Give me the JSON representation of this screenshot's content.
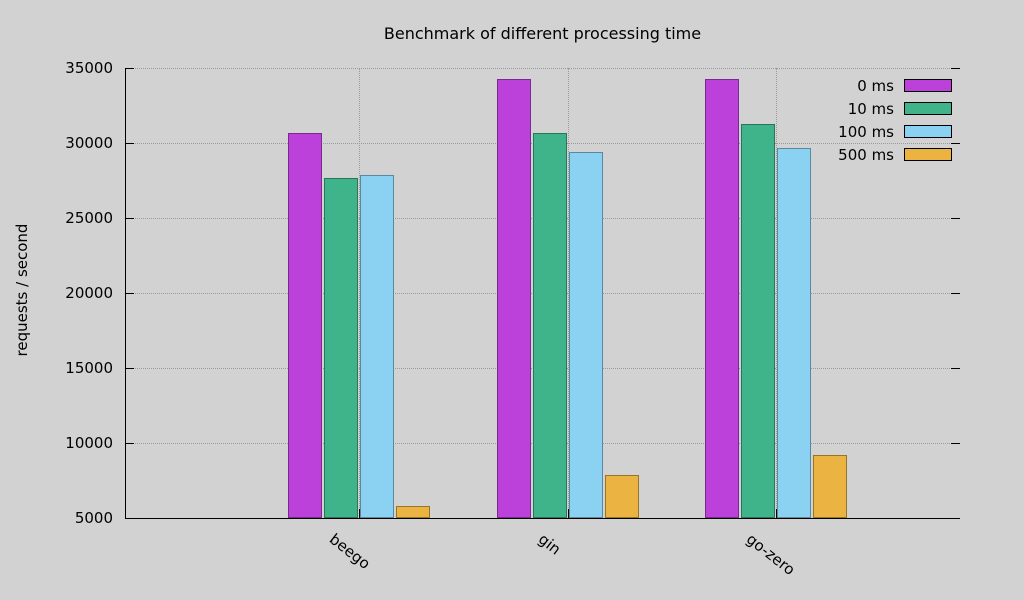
{
  "chart_data": {
    "type": "bar",
    "title": "Benchmark of different processing time",
    "ylabel": "requests / second",
    "xlabel": "",
    "categories": [
      "beego",
      "gin",
      "go-zero"
    ],
    "series": [
      {
        "name": "0 ms",
        "color": "#bb41da",
        "values": [
          30700,
          34300,
          34250
        ]
      },
      {
        "name": "10 ms",
        "color": "#3fb38a",
        "values": [
          27700,
          30650,
          31250
        ]
      },
      {
        "name": "100 ms",
        "color": "#8bd2f2",
        "values": [
          27850,
          29400,
          29650
        ]
      },
      {
        "name": "500 ms",
        "color": "#eab342",
        "values": [
          5800,
          7900,
          9200
        ]
      }
    ],
    "ylim": [
      5000,
      35000
    ],
    "yticks": [
      5000,
      10000,
      15000,
      20000,
      25000,
      30000,
      35000
    ],
    "legend_position": "top-right",
    "grid": true,
    "background_color": "#d2d2d2"
  }
}
